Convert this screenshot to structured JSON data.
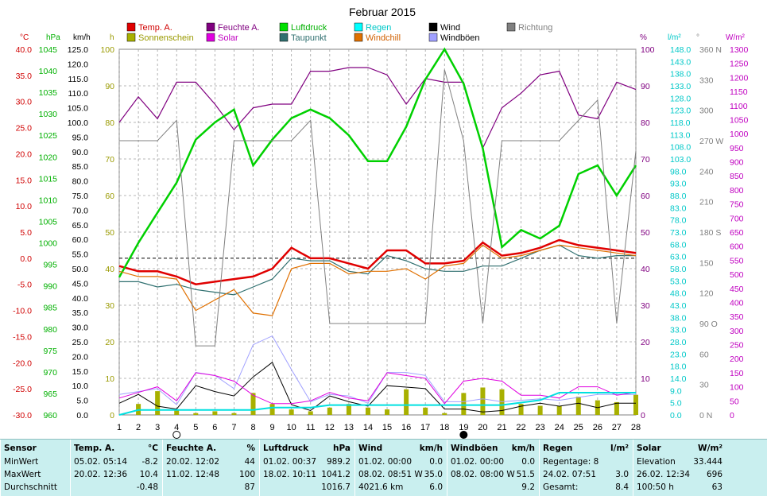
{
  "chart_data": {
    "type": "line",
    "title": "Februar 2015",
    "x": [
      1,
      2,
      3,
      4,
      5,
      6,
      7,
      8,
      9,
      10,
      11,
      12,
      13,
      14,
      15,
      16,
      17,
      18,
      19,
      20,
      21,
      22,
      23,
      24,
      25,
      26,
      27,
      28
    ],
    "axis_labels": {
      "temp": "°C",
      "pressure": "hPa",
      "wind": "km/h",
      "sun": "h",
      "humidity": "%",
      "rain": "l/m²",
      "direction": "°",
      "solar": "W/m²"
    },
    "axes": {
      "temp": {
        "range": [
          -30,
          40
        ],
        "ticks": [
          "40.0",
          "35.0",
          "30.0",
          "25.0",
          "20.0",
          "15.0",
          "10.0",
          "5.0",
          "0.0",
          "-5.0",
          "-10.0",
          "-15.0",
          "-20.0",
          "-25.0",
          "-30.0"
        ],
        "color": "#d00000"
      },
      "pressure": {
        "range": [
          960,
          1045
        ],
        "ticks": [
          "1045",
          "1040",
          "1035",
          "1030",
          "1025",
          "1020",
          "1015",
          "1010",
          "1005",
          "1000",
          "995",
          "990",
          "985",
          "980",
          "975",
          "970",
          "965",
          "960"
        ],
        "color": "#00b000"
      },
      "wind": {
        "range": [
          0,
          125
        ],
        "ticks": [
          "125.0",
          "120.0",
          "115.0",
          "110.0",
          "105.0",
          "100.0",
          "95.0",
          "90.0",
          "85.0",
          "80.0",
          "75.0",
          "70.0",
          "65.0",
          "60.0",
          "55.0",
          "50.0",
          "45.0",
          "40.0",
          "35.0",
          "30.0",
          "25.0",
          "20.0",
          "15.0",
          "10.0",
          "5.0",
          "0.0"
        ],
        "color": "#000000"
      },
      "sun": {
        "range": [
          0,
          100
        ],
        "ticks": [
          "100",
          "90",
          "80",
          "70",
          "60",
          "50",
          "40",
          "30",
          "20",
          "10",
          "0"
        ],
        "color": "#9a9a00"
      },
      "humidity": {
        "range": [
          0,
          100
        ],
        "ticks": [
          "100",
          "90",
          "80",
          "70",
          "60",
          "50",
          "40",
          "30",
          "20",
          "10",
          "0"
        ],
        "color": "#800080"
      },
      "rain": {
        "range": [
          0,
          148
        ],
        "ticks": [
          "148.0",
          "143.0",
          "138.0",
          "133.0",
          "128.0",
          "123.0",
          "118.0",
          "113.0",
          "108.0",
          "103.0",
          "98.0",
          "93.0",
          "88.0",
          "83.0",
          "78.0",
          "73.0",
          "68.0",
          "63.0",
          "58.0",
          "53.0",
          "48.0",
          "43.0",
          "38.0",
          "33.0",
          "28.0",
          "23.0",
          "18.0",
          "14.0",
          "9.0",
          "5.0",
          "0.0"
        ],
        "color": "#00c8c8"
      },
      "direction": {
        "range": [
          0,
          360
        ],
        "ticks": [
          "360 N",
          "330",
          "300",
          "270 W",
          "240",
          "210",
          "180 S",
          "150",
          "120",
          "90 O",
          "60",
          "30",
          "0 N"
        ],
        "color": "#808080"
      },
      "solar": {
        "range": [
          0,
          1300
        ],
        "ticks": [
          "1300",
          "1250",
          "1200",
          "1150",
          "1100",
          "1050",
          "1000",
          "950",
          "900",
          "850",
          "800",
          "750",
          "700",
          "650",
          "600",
          "550",
          "500",
          "450",
          "400",
          "350",
          "300",
          "250",
          "200",
          "150",
          "100",
          "50",
          "0"
        ],
        "color": "#c000c0"
      }
    },
    "legend": [
      "Temp. A.",
      "Feuchte A.",
      "Luftdruck",
      "Regen",
      "Wind",
      "Richtung",
      "Sonnenschein",
      "Solar",
      "Taupunkt",
      "Windchill",
      "Windböen"
    ],
    "series": [
      {
        "name": "Temp. A.",
        "axis": "temp",
        "color": "#e00000",
        "width": 2.5,
        "values": [
          -1.5,
          -2.5,
          -2.5,
          -3.5,
          -5.0,
          -4.5,
          -4.0,
          -3.5,
          -2.0,
          2.0,
          0.0,
          0.0,
          -1.0,
          -2.0,
          1.5,
          1.5,
          -1.0,
          -1.0,
          -0.5,
          3.0,
          0.5,
          1.0,
          2.0,
          3.5,
          2.5,
          2.0,
          1.5,
          1.0
        ]
      },
      {
        "name": "Feuchte A.",
        "axis": "humidity",
        "color": "#800080",
        "width": 1.2,
        "values": [
          80,
          87,
          81,
          91,
          91,
          85,
          78,
          84,
          85,
          85,
          94,
          94,
          95,
          95,
          93,
          85,
          92,
          91,
          91,
          73,
          84,
          88,
          93,
          94,
          82,
          81,
          91,
          89
        ]
      },
      {
        "name": "Luftdruck",
        "axis": "pressure",
        "color": "#00d000",
        "width": 2.5,
        "values": [
          992,
          1000,
          1007,
          1014,
          1024,
          1028,
          1031,
          1018,
          1024,
          1029,
          1031,
          1029,
          1025,
          1019,
          1019,
          1027,
          1038,
          1045,
          1037,
          1022,
          999,
          1003,
          1001,
          1004,
          1016,
          1018,
          1011,
          1018
        ]
      },
      {
        "name": "Taupunkt",
        "axis": "temp",
        "color": "#2f6f6f",
        "width": 1.2,
        "values": [
          -4.5,
          -4.5,
          -5.5,
          -5.0,
          -6.0,
          -6.5,
          -7.0,
          -5.5,
          -4.0,
          0.0,
          -0.5,
          -0.5,
          -2.5,
          -3.0,
          0.5,
          -0.5,
          -2.0,
          -2.5,
          -2.5,
          -1.5,
          -1.5,
          0.0,
          1.5,
          2.5,
          0.5,
          0.0,
          0.5,
          0.5
        ]
      },
      {
        "name": "Windchill",
        "axis": "temp",
        "color": "#e07000",
        "width": 1.2,
        "values": [
          -2.5,
          -3.5,
          -3.5,
          -4.0,
          -10.0,
          -8.0,
          -6.0,
          -10.5,
          -11.0,
          -2.0,
          -1.0,
          -1.0,
          -3.0,
          -2.5,
          -2.5,
          -2.0,
          -4.0,
          -1.5,
          -1.0,
          2.5,
          0.0,
          0.5,
          1.5,
          2.5,
          2.0,
          1.5,
          1.0,
          0.5
        ]
      },
      {
        "name": "Wind",
        "axis": "wind",
        "color": "#000000",
        "width": 1.0,
        "values": [
          4.0,
          7.0,
          3.0,
          2.0,
          10.0,
          8.0,
          6.5,
          13.0,
          18.0,
          3.5,
          1.5,
          6.5,
          4.5,
          3.0,
          10.0,
          9.5,
          9.0,
          2.0,
          2.0,
          1.0,
          1.5,
          3.0,
          4.0,
          3.0,
          4.0,
          2.5,
          4.0,
          4.0
        ]
      },
      {
        "name": "Windböen",
        "axis": "wind",
        "color": "#a0a0ff",
        "width": 1.0,
        "values": [
          7.0,
          8.0,
          9.0,
          3.5,
          14.5,
          13.5,
          9.0,
          24.0,
          27.0,
          15.5,
          4.5,
          7.0,
          6.5,
          4.0,
          14.5,
          14.5,
          13.5,
          4.5,
          4.5,
          5.5,
          4.5,
          5.0,
          5.5,
          5.0,
          6.0,
          7.0,
          7.0,
          7.0
        ]
      },
      {
        "name": "Richtung",
        "axis": "direction",
        "color": "#808080",
        "width": 1.0,
        "values": [
          270,
          270,
          270,
          290,
          68,
          68,
          270,
          270,
          270,
          270,
          290,
          90,
          90,
          90,
          90,
          90,
          90,
          340,
          270,
          90,
          270,
          270,
          270,
          270,
          290,
          310,
          90,
          260
        ]
      },
      {
        "name": "Solar",
        "axis": "solar",
        "color": "#e000e0",
        "width": 1.0,
        "values": [
          60,
          80,
          100,
          50,
          150,
          140,
          120,
          70,
          40,
          40,
          50,
          80,
          60,
          50,
          150,
          140,
          130,
          40,
          120,
          130,
          120,
          70,
          70,
          60,
          100,
          100,
          70,
          80
        ]
      },
      {
        "name": "Regen",
        "axis": "rain",
        "color": "#00e0e0",
        "width": 2.0,
        "values": [
          0,
          2,
          2,
          2,
          2,
          2,
          2,
          2,
          3,
          3,
          3,
          4,
          4,
          4,
          4,
          4,
          4,
          4,
          4,
          4,
          4,
          5,
          6,
          9,
          9,
          9,
          9,
          9
        ]
      }
    ],
    "bars": {
      "name": "Sonnenschein",
      "axis": "sun",
      "color": "#a8b000",
      "values": [
        0.0,
        3.0,
        6.5,
        1.5,
        0.5,
        1.0,
        0.5,
        6.0,
        3.0,
        1.5,
        1.0,
        2.0,
        3.0,
        2.0,
        1.5,
        7.0,
        2.0,
        0.5,
        6.0,
        7.5,
        7.0,
        3.0,
        2.5,
        2.5,
        5.0,
        4.0,
        3.5,
        5.5
      ]
    },
    "reference_lines": [
      {
        "axis": "temp",
        "value": 0,
        "style": "dashed"
      }
    ],
    "moon_markers": [
      {
        "day": 4,
        "phase": "full"
      },
      {
        "day": 19,
        "phase": "new"
      }
    ]
  },
  "stats": {
    "rows": [
      "Sensor",
      "MinWert",
      "MaxWert",
      "Durchschnitt"
    ],
    "columns": [
      {
        "name": "Temp. A.",
        "unit": "°C",
        "min_time": "05.02.  05:14",
        "min": "-8.2",
        "max_time": "20.02.  12:36",
        "max": "10.4",
        "avg_extra": "",
        "avg": "-0.48"
      },
      {
        "name": "Feuchte A.",
        "unit": "%",
        "min_time": "20.02.  12:02",
        "min": "44",
        "max_time": "11.02.  12:48",
        "max": "100",
        "avg_extra": "",
        "avg": "87"
      },
      {
        "name": "Luftdruck",
        "unit": "hPa",
        "min_time": "01.02.  00:37",
        "min": "989.2",
        "max_time": "18.02.  10:11",
        "max": "1041.2",
        "avg_extra": "",
        "avg": "1016.7"
      },
      {
        "name": "Wind",
        "unit": "km/h",
        "min_time": "01.02.  00:00",
        "min": "0.0",
        "max_time": "08.02.  08:51  W",
        "max": "35.0",
        "avg_extra": "4021.6 km",
        "avg": "6.0"
      },
      {
        "name": "Windböen",
        "unit": "km/h",
        "min_time": "01.02.  00:00",
        "min": "0.0",
        "max_time": "08.02.  08:00  W",
        "max": "51.5",
        "avg_extra": "",
        "avg": "9.2"
      },
      {
        "name": "Regen",
        "unit": "l/m²",
        "min_time": "Regentage: 8",
        "min": "",
        "max_time": "24.02.  07:51",
        "max": "3.0",
        "avg_extra": "Gesamt:",
        "avg": "8.4"
      },
      {
        "name": "Solar",
        "unit": "W/m²",
        "min_time": "Elevation",
        "min": "33.444",
        "max_time": "26.02.  12:34",
        "max": "696",
        "avg_extra": "100:50 h",
        "avg": "63"
      }
    ]
  }
}
